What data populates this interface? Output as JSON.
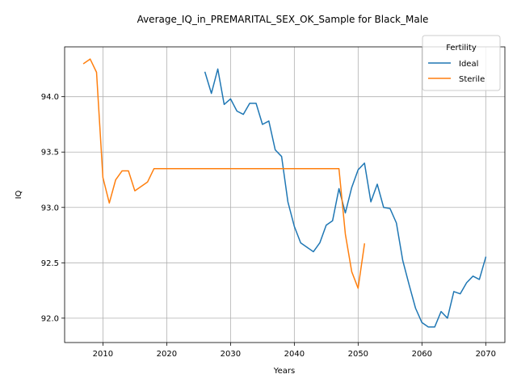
{
  "chart_data": {
    "type": "line",
    "title": "Average_IQ_in_PREMARITAL_SEX_OK_Sample for Black_Male",
    "xlabel": "Years",
    "ylabel": "IQ",
    "xlim": [
      2004,
      2073
    ],
    "ylim": [
      91.78,
      94.45
    ],
    "x_ticks": [
      2010,
      2020,
      2030,
      2040,
      2050,
      2060,
      2070
    ],
    "y_ticks": [
      92.0,
      92.5,
      93.0,
      93.5,
      94.0
    ],
    "x_tick_labels": [
      "2010",
      "2020",
      "2030",
      "2040",
      "2050",
      "2060",
      "2070"
    ],
    "y_tick_labels": [
      "92.0",
      "92.5",
      "93.0",
      "93.5",
      "94.0"
    ],
    "grid": true,
    "legend": {
      "title": "Fertility",
      "placement": "top-right"
    },
    "series": [
      {
        "name": "Ideal",
        "color": "#1f77b4",
        "x": [
          2026,
          2027,
          2028,
          2029,
          2030,
          2031,
          2032,
          2033,
          2034,
          2035,
          2036,
          2037,
          2038,
          2039,
          2040,
          2041,
          2042,
          2043,
          2044,
          2045,
          2046,
          2047,
          2048,
          2049,
          2050,
          2051,
          2052,
          2053,
          2054,
          2055,
          2056,
          2057,
          2058,
          2059,
          2060,
          2061,
          2062,
          2063,
          2064,
          2065,
          2066,
          2067,
          2068,
          2069,
          2070
        ],
        "y": [
          94.22,
          94.03,
          94.25,
          93.93,
          93.98,
          93.87,
          93.84,
          93.94,
          93.94,
          93.75,
          93.78,
          93.52,
          93.46,
          93.05,
          92.83,
          92.68,
          92.64,
          92.6,
          92.68,
          92.84,
          92.88,
          93.17,
          92.95,
          93.18,
          93.34,
          93.4,
          93.05,
          93.21,
          93.0,
          92.99,
          92.86,
          92.52,
          92.3,
          92.09,
          91.96,
          91.92,
          91.92,
          92.06,
          92.0,
          92.24,
          92.22,
          92.32,
          92.38,
          92.35,
          92.55
        ]
      },
      {
        "name": "Sterile",
        "color": "#ff7f0e",
        "x": [
          2007,
          2008,
          2009,
          2010,
          2011,
          2012,
          2013,
          2014,
          2015,
          2016,
          2017,
          2018,
          2020,
          2025,
          2030,
          2035,
          2040,
          2045,
          2046,
          2047,
          2048,
          2049,
          2050,
          2051
        ],
        "y": [
          94.3,
          94.34,
          94.22,
          93.27,
          93.04,
          93.25,
          93.33,
          93.33,
          93.15,
          93.19,
          93.23,
          93.35,
          93.35,
          93.35,
          93.35,
          93.35,
          93.35,
          93.35,
          93.35,
          93.35,
          92.76,
          92.42,
          92.27,
          92.67
        ]
      }
    ]
  }
}
